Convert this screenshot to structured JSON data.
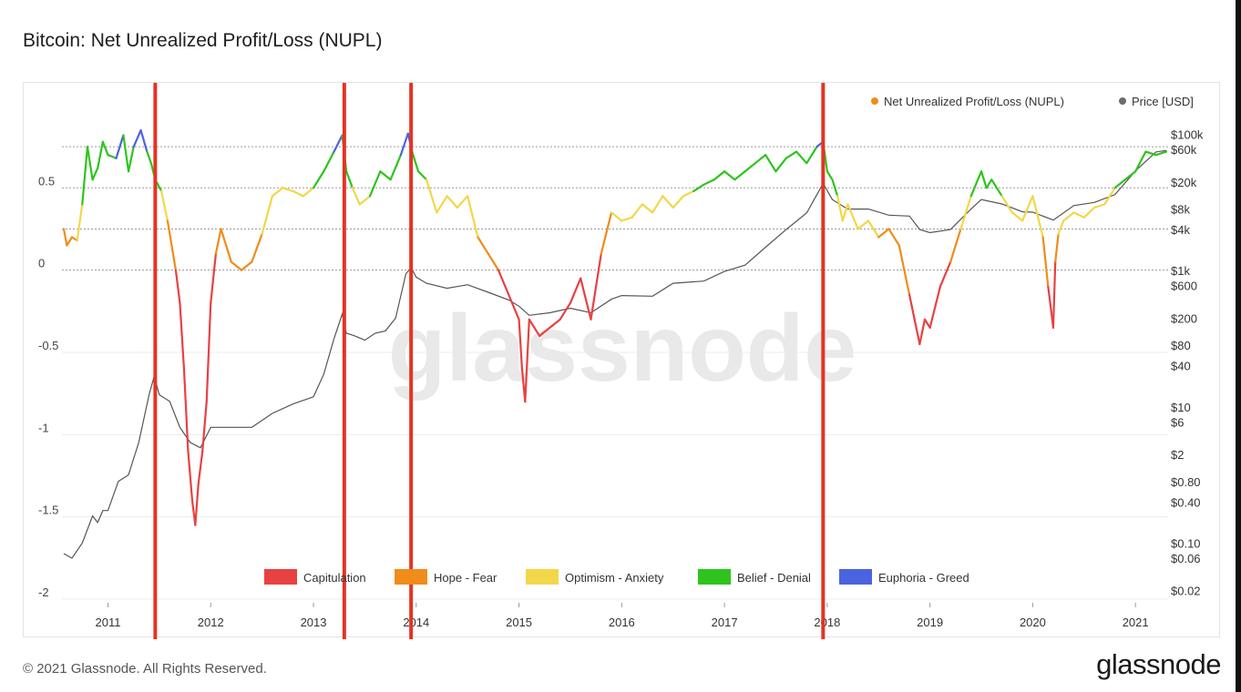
{
  "header": {
    "title": "Bitcoin: Net Unrealized Profit/Loss (NUPL)"
  },
  "footer": {
    "copyright": "© 2021 Glassnode. All Rights Reserved.",
    "brand": "glassnode"
  },
  "watermark": "glassnode",
  "colors": {
    "capitulation": "#e84141",
    "hope_fear": "#f08c1a",
    "optimism_anxiety": "#f2d74a",
    "belief_denial": "#2ec41d",
    "euphoria_greed": "#4a63e0",
    "price": "#555555",
    "nupl_legend_dot": "#f08c1a",
    "price_legend_dot": "#6b6b6b",
    "marker": "#e53323"
  },
  "chart_data": {
    "type": "line",
    "title": "Bitcoin: Net Unrealized Profit/Loss (NUPL)",
    "legend": [
      {
        "label": "Net Unrealized Profit/Loss (NUPL)",
        "color": "#f08c1a"
      },
      {
        "label": "Price [USD]",
        "color": "#6b6b6b"
      }
    ],
    "legend_position": "top-right",
    "zone_legend": [
      {
        "label": "Capitulation",
        "color": "#e84141",
        "min": -10,
        "max": 0
      },
      {
        "label": "Hope - Fear",
        "color": "#f08c1a",
        "min": 0,
        "max": 0.25
      },
      {
        "label": "Optimism - Anxiety",
        "color": "#f2d74a",
        "min": 0.25,
        "max": 0.5
      },
      {
        "label": "Belief - Denial",
        "color": "#2ec41d",
        "min": 0.5,
        "max": 0.75
      },
      {
        "label": "Euphoria - Greed",
        "color": "#4a63e0",
        "min": 0.75,
        "max": 10
      }
    ],
    "x_ticks": [
      "2011",
      "2012",
      "2013",
      "2014",
      "2015",
      "2016",
      "2017",
      "2018",
      "2019",
      "2020",
      "2021"
    ],
    "x_range": [
      2010.57,
      2021.3
    ],
    "y_left_ticks": [
      {
        "value": 0.5,
        "label": "0.5"
      },
      {
        "value": 0,
        "label": "0"
      },
      {
        "value": -0.5,
        "label": "-0.5"
      },
      {
        "value": -1,
        "label": "-1"
      },
      {
        "value": -1.5,
        "label": "-1.5"
      },
      {
        "value": -2,
        "label": "-2"
      }
    ],
    "y_left_range": [
      -2,
      0.95
    ],
    "y_right_ticks": [
      {
        "value": 100000,
        "label": "$100k"
      },
      {
        "value": 60000,
        "label": "$60k"
      },
      {
        "value": 20000,
        "label": "$20k"
      },
      {
        "value": 8000,
        "label": "$8k"
      },
      {
        "value": 4000,
        "label": "$4k"
      },
      {
        "value": 1000,
        "label": "$1k"
      },
      {
        "value": 600,
        "label": "$600"
      },
      {
        "value": 200,
        "label": "$200"
      },
      {
        "value": 80,
        "label": "$80"
      },
      {
        "value": 40,
        "label": "$40"
      },
      {
        "value": 10,
        "label": "$10"
      },
      {
        "value": 6,
        "label": "$6"
      },
      {
        "value": 2,
        "label": "$2"
      },
      {
        "value": 0.8,
        "label": "$0.80"
      },
      {
        "value": 0.4,
        "label": "$0.40"
      },
      {
        "value": 0.1,
        "label": "$0.10"
      },
      {
        "value": 0.06,
        "label": "$0.06"
      },
      {
        "value": 0.02,
        "label": "$0.02"
      }
    ],
    "y_right_scale": "log",
    "y_right_range": [
      0.015,
      200000
    ],
    "grid": true,
    "markers": [
      2011.46,
      2013.3,
      2013.95,
      2017.96
    ],
    "series": [
      {
        "name": "Net Unrealized Profit/Loss (NUPL)",
        "axis": "left",
        "x": [
          2010.57,
          2010.6,
          2010.65,
          2010.7,
          2010.75,
          2010.8,
          2010.85,
          2010.9,
          2010.95,
          2011.0,
          2011.08,
          2011.15,
          2011.2,
          2011.25,
          2011.32,
          2011.38,
          2011.42,
          2011.46,
          2011.52,
          2011.58,
          2011.62,
          2011.66,
          2011.7,
          2011.74,
          2011.78,
          2011.82,
          2011.85,
          2011.88,
          2011.92,
          2011.96,
          2012.0,
          2012.05,
          2012.1,
          2012.15,
          2012.2,
          2012.3,
          2012.4,
          2012.5,
          2012.6,
          2012.7,
          2012.8,
          2012.9,
          2013.0,
          2013.1,
          2013.2,
          2013.28,
          2013.32,
          2013.38,
          2013.45,
          2013.55,
          2013.65,
          2013.75,
          2013.85,
          2013.92,
          2013.96,
          2014.02,
          2014.1,
          2014.2,
          2014.3,
          2014.4,
          2014.5,
          2014.6,
          2014.7,
          2014.8,
          2014.9,
          2015.0,
          2015.03,
          2015.06,
          2015.1,
          2015.2,
          2015.3,
          2015.4,
          2015.5,
          2015.6,
          2015.7,
          2015.8,
          2015.9,
          2016.0,
          2016.1,
          2016.2,
          2016.3,
          2016.4,
          2016.5,
          2016.6,
          2016.7,
          2016.8,
          2016.9,
          2017.0,
          2017.1,
          2017.2,
          2017.3,
          2017.4,
          2017.5,
          2017.6,
          2017.7,
          2017.8,
          2017.9,
          2017.96,
          2018.0,
          2018.05,
          2018.1,
          2018.15,
          2018.2,
          2018.3,
          2018.4,
          2018.5,
          2018.6,
          2018.7,
          2018.8,
          2018.85,
          2018.9,
          2018.95,
          2019.0,
          2019.1,
          2019.2,
          2019.3,
          2019.4,
          2019.5,
          2019.55,
          2019.6,
          2019.7,
          2019.8,
          2019.9,
          2020.0,
          2020.1,
          2020.15,
          2020.2,
          2020.22,
          2020.25,
          2020.3,
          2020.4,
          2020.5,
          2020.6,
          2020.7,
          2020.8,
          2020.9,
          2021.0,
          2021.1,
          2021.2,
          2021.3
        ],
        "y": [
          0.25,
          0.15,
          0.2,
          0.18,
          0.4,
          0.75,
          0.55,
          0.62,
          0.78,
          0.7,
          0.68,
          0.82,
          0.6,
          0.75,
          0.85,
          0.72,
          0.65,
          0.55,
          0.48,
          0.3,
          0.15,
          0.0,
          -0.2,
          -0.6,
          -1.1,
          -1.4,
          -1.55,
          -1.3,
          -1.1,
          -0.8,
          -0.2,
          0.1,
          0.25,
          0.15,
          0.05,
          0.0,
          0.05,
          0.22,
          0.45,
          0.5,
          0.48,
          0.45,
          0.5,
          0.6,
          0.72,
          0.82,
          0.6,
          0.5,
          0.4,
          0.45,
          0.6,
          0.55,
          0.7,
          0.83,
          0.72,
          0.6,
          0.55,
          0.35,
          0.45,
          0.38,
          0.45,
          0.2,
          0.1,
          0.0,
          -0.15,
          -0.3,
          -0.6,
          -0.8,
          -0.3,
          -0.4,
          -0.35,
          -0.3,
          -0.2,
          -0.05,
          -0.3,
          0.1,
          0.35,
          0.3,
          0.32,
          0.4,
          0.35,
          0.45,
          0.38,
          0.45,
          0.48,
          0.52,
          0.55,
          0.6,
          0.55,
          0.6,
          0.65,
          0.7,
          0.6,
          0.68,
          0.72,
          0.65,
          0.75,
          0.78,
          0.6,
          0.55,
          0.45,
          0.3,
          0.4,
          0.25,
          0.3,
          0.2,
          0.25,
          0.15,
          -0.15,
          -0.3,
          -0.45,
          -0.3,
          -0.35,
          -0.1,
          0.05,
          0.25,
          0.45,
          0.6,
          0.5,
          0.55,
          0.45,
          0.35,
          0.3,
          0.45,
          0.2,
          -0.1,
          -0.35,
          0.05,
          0.22,
          0.3,
          0.35,
          0.32,
          0.38,
          0.4,
          0.5,
          0.55,
          0.6,
          0.72,
          0.7,
          0.72
        ]
      },
      {
        "name": "Price [USD]",
        "axis": "right",
        "x": [
          2010.57,
          2010.65,
          2010.75,
          2010.85,
          2010.9,
          2010.95,
          2011.0,
          2011.1,
          2011.2,
          2011.3,
          2011.4,
          2011.45,
          2011.5,
          2011.6,
          2011.7,
          2011.8,
          2011.9,
          2012.0,
          2012.2,
          2012.4,
          2012.6,
          2012.8,
          2013.0,
          2013.1,
          2013.2,
          2013.28,
          2013.32,
          2013.4,
          2013.5,
          2013.6,
          2013.7,
          2013.8,
          2013.9,
          2013.95,
          2014.0,
          2014.1,
          2014.3,
          2014.5,
          2014.7,
          2014.9,
          2015.0,
          2015.1,
          2015.3,
          2015.5,
          2015.7,
          2015.9,
          2016.0,
          2016.3,
          2016.5,
          2016.8,
          2017.0,
          2017.2,
          2017.4,
          2017.6,
          2017.8,
          2017.96,
          2018.05,
          2018.2,
          2018.4,
          2018.6,
          2018.8,
          2018.9,
          2019.0,
          2019.2,
          2019.4,
          2019.5,
          2019.7,
          2019.9,
          2020.0,
          2020.2,
          2020.4,
          2020.6,
          2020.8,
          2021.0,
          2021.1,
          2021.2,
          2021.3
        ],
        "y": [
          0.07,
          0.06,
          0.1,
          0.25,
          0.2,
          0.3,
          0.3,
          0.8,
          1.0,
          3.0,
          15.0,
          28.0,
          15.0,
          12.0,
          5.0,
          3.0,
          2.5,
          5.0,
          5.0,
          5.0,
          8.0,
          11.0,
          14.0,
          30.0,
          100.0,
          230.0,
          120.0,
          110.0,
          95.0,
          120.0,
          130.0,
          200.0,
          900.0,
          1100.0,
          800.0,
          650.0,
          550.0,
          620.0,
          480.0,
          370.0,
          300.0,
          220.0,
          240.0,
          280.0,
          240.0,
          380.0,
          430.0,
          420.0,
          650.0,
          700.0,
          970.0,
          1200.0,
          2200.0,
          4000.0,
          7000.0,
          19000.0,
          11000.0,
          8000.0,
          8000.0,
          6500.0,
          6300.0,
          4000.0,
          3600.0,
          4000.0,
          8000.0,
          11000.0,
          9500.0,
          7300.0,
          7200.0,
          5500.0,
          9000.0,
          10000.0,
          13000.0,
          29000.0,
          40000.0,
          55000.0,
          58000.0
        ]
      }
    ]
  }
}
